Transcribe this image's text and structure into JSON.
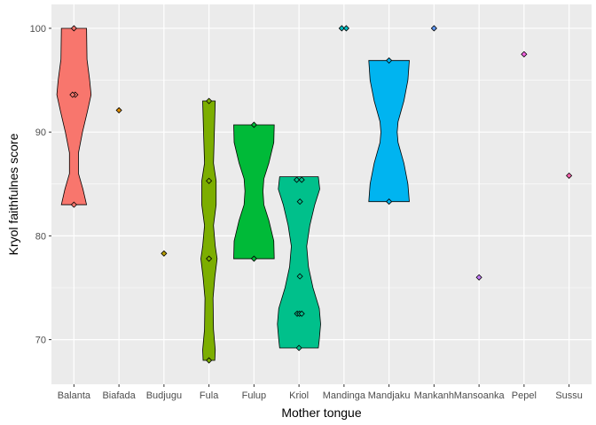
{
  "chart_data": {
    "type": "violin",
    "xlabel": "Mother tongue",
    "ylabel": "Kryol faithfulnes score",
    "ylim": [
      65.7,
      102.3
    ],
    "yticks": [
      70,
      80,
      90,
      100
    ],
    "grid": true,
    "legend": "none",
    "categories": [
      "Balanta",
      "Biafada",
      "Budjugu",
      "Fula",
      "Fulup",
      "Kriol",
      "Mandinga",
      "Mandjaku",
      "Mankanh",
      "Mansoanka",
      "Pepel",
      "Sussu"
    ],
    "colors": [
      "#F8766D",
      "#DE8C00",
      "#B79F00",
      "#7CAE00",
      "#00BA38",
      "#00C08B",
      "#00BFC4",
      "#00B4F0",
      "#619CFF",
      "#C77CFF",
      "#F564E3",
      "#FF64B0"
    ],
    "points": [
      [
        [
          0,
          100
        ],
        [
          0.03,
          93.6
        ],
        [
          -0.03,
          93.6
        ],
        [
          0,
          83
        ]
      ],
      [
        [
          0,
          92.1
        ]
      ],
      [
        [
          0,
          78.3
        ]
      ],
      [
        [
          0,
          93
        ],
        [
          0,
          85.3
        ],
        [
          0,
          77.8
        ],
        [
          0,
          68
        ]
      ],
      [
        [
          0,
          90.7
        ],
        [
          0,
          77.8
        ]
      ],
      [
        [
          -0.05,
          85.4
        ],
        [
          0.06,
          85.4
        ],
        [
          0.02,
          83.3
        ],
        [
          0.02,
          76.1
        ],
        [
          -0.04,
          72.5
        ],
        [
          0.01,
          72.5
        ],
        [
          0.06,
          72.5
        ],
        [
          0,
          69.2
        ]
      ],
      [
        [
          -0.05,
          100
        ],
        [
          0.05,
          100
        ]
      ],
      [
        [
          0,
          96.9
        ],
        [
          0,
          83.3
        ]
      ],
      [
        [
          0,
          100
        ]
      ],
      [
        [
          0,
          76
        ]
      ],
      [
        [
          0,
          97.5
        ]
      ],
      [
        [
          0,
          85.8
        ]
      ]
    ],
    "violins": [
      {
        "index": 0,
        "profile": [
          [
            100,
            0.28
          ],
          [
            97,
            0.29
          ],
          [
            95,
            0.35
          ],
          [
            93.6,
            0.38
          ],
          [
            92,
            0.3
          ],
          [
            90,
            0.19
          ],
          [
            88,
            0.1
          ],
          [
            86,
            0.1
          ],
          [
            84.5,
            0.2
          ],
          [
            83,
            0.28
          ]
        ]
      },
      {
        "index": 3,
        "profile": [
          [
            93,
            0.14
          ],
          [
            90,
            0.12
          ],
          [
            87,
            0.1
          ],
          [
            85.3,
            0.16
          ],
          [
            83,
            0.16
          ],
          [
            81,
            0.1
          ],
          [
            79,
            0.14
          ],
          [
            77.8,
            0.18
          ],
          [
            76,
            0.13
          ],
          [
            74,
            0.09
          ],
          [
            71,
            0.1
          ],
          [
            69,
            0.14
          ],
          [
            68,
            0.13
          ]
        ]
      },
      {
        "index": 4,
        "profile": [
          [
            90.7,
            0.45
          ],
          [
            89,
            0.44
          ],
          [
            87,
            0.33
          ],
          [
            85.5,
            0.22
          ],
          [
            84.3,
            0.2
          ],
          [
            83,
            0.22
          ],
          [
            81.5,
            0.33
          ],
          [
            79.5,
            0.44
          ],
          [
            77.8,
            0.45
          ]
        ]
      },
      {
        "index": 5,
        "profile": [
          [
            85.7,
            0.43
          ],
          [
            84.5,
            0.46
          ],
          [
            83,
            0.35
          ],
          [
            81,
            0.24
          ],
          [
            79,
            0.17
          ],
          [
            77,
            0.21
          ],
          [
            75,
            0.31
          ],
          [
            73,
            0.45
          ],
          [
            71.5,
            0.48
          ],
          [
            70,
            0.45
          ],
          [
            69.2,
            0.43
          ]
        ]
      },
      {
        "index": 7,
        "profile": [
          [
            96.9,
            0.45
          ],
          [
            95,
            0.42
          ],
          [
            93,
            0.33
          ],
          [
            91,
            0.2
          ],
          [
            90,
            0.18
          ],
          [
            89,
            0.2
          ],
          [
            87,
            0.33
          ],
          [
            85,
            0.42
          ],
          [
            83.3,
            0.45
          ]
        ]
      }
    ]
  }
}
